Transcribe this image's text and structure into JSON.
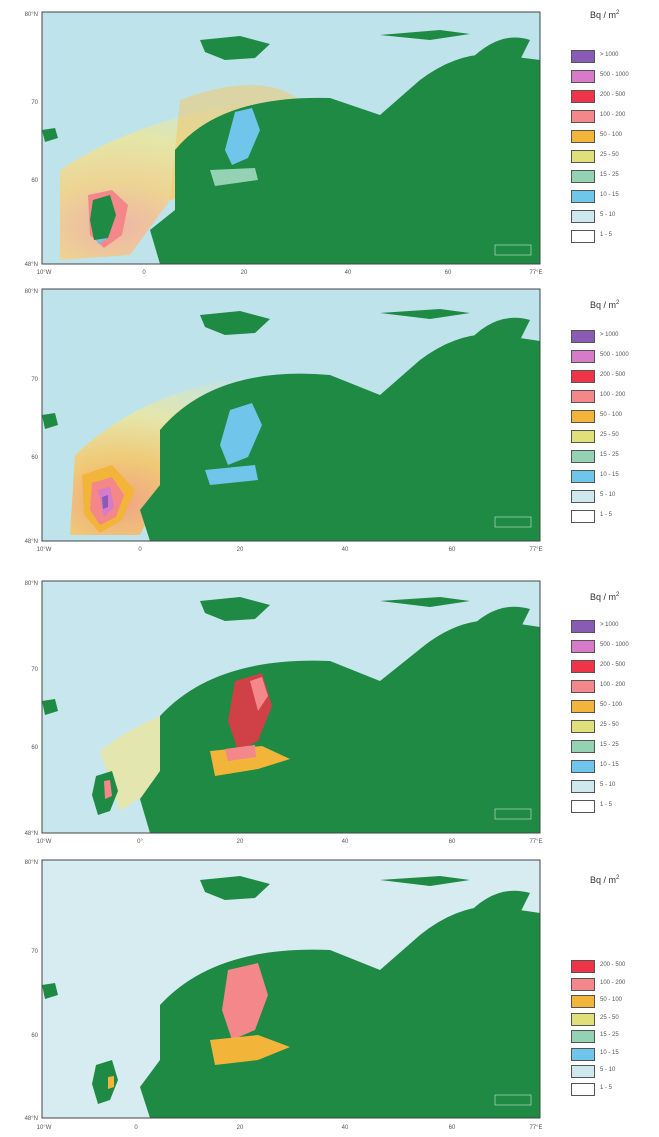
{
  "unit": {
    "base": "Bq / m",
    "sup": "2"
  },
  "map_colors": {
    "ocean": "#bfe3ea",
    "land": "#1e8a44",
    "frame": "#444444"
  },
  "legend_full": [
    {
      "label": "> 1000",
      "color": "#8a5bb5"
    },
    {
      "label": "500 - 1000",
      "color": "#d77bc9"
    },
    {
      "label": "200 - 500",
      "color": "#ee3448"
    },
    {
      "label": "100 - 200",
      "color": "#f3878a"
    },
    {
      "label": "50 - 100",
      "color": "#f2b53a"
    },
    {
      "label": "25 - 50",
      "color": "#dfe07a"
    },
    {
      "label": "15 - 25",
      "color": "#95d2b4"
    },
    {
      "label": "10 - 15",
      "color": "#6fc6ea"
    },
    {
      "label": "5 - 10",
      "color": "#cfe8ee"
    },
    {
      "label": "1 - 5",
      "color": "#ffffff"
    }
  ],
  "legend_reduced": [
    {
      "label": "200 - 500",
      "color": "#ee3448"
    },
    {
      "label": "100 - 200",
      "color": "#f3878a"
    },
    {
      "label": "50 - 100",
      "color": "#f2b53a"
    },
    {
      "label": "25 - 50",
      "color": "#dfe07a"
    },
    {
      "label": "15 - 25",
      "color": "#95d2b4"
    },
    {
      "label": "10 - 15",
      "color": "#6fc6ea"
    },
    {
      "label": "5 - 10",
      "color": "#cfe8ee"
    },
    {
      "label": "1 - 5",
      "color": "#ffffff"
    }
  ],
  "panels": [
    {
      "id": "panel-1",
      "lat_ticks": [
        "80°N",
        "70",
        "60",
        "48°N"
      ],
      "lon_ticks": [
        "10°W",
        "0",
        "20",
        "40",
        "60",
        "77°E"
      ]
    },
    {
      "id": "panel-2",
      "lat_ticks": [
        "80°N",
        "70",
        "60",
        "48°N"
      ],
      "lon_ticks": [
        "10°W",
        "0",
        "20",
        "40",
        "60",
        "77°E"
      ]
    },
    {
      "id": "panel-3",
      "lat_ticks": [
        "80°N",
        "70",
        "60",
        "48°N"
      ],
      "lon_ticks": [
        "10°W",
        "0°",
        "20",
        "40",
        "60",
        "77°E"
      ]
    },
    {
      "id": "panel-4",
      "lat_ticks": [
        "80°N",
        "70",
        "60",
        "48°N"
      ],
      "lon_ticks": [
        "10°W",
        "0",
        "20",
        "40",
        "60",
        "77°E"
      ]
    }
  ]
}
